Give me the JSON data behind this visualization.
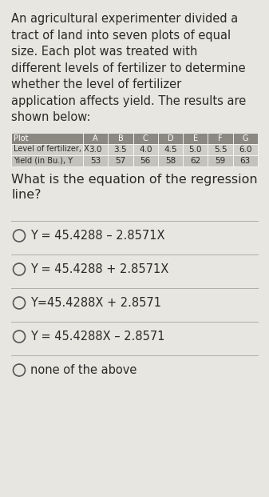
{
  "background_color": "#e8e6e0",
  "text_color": "#2a2a2a",
  "para_lines": [
    "An agricultural experimenter divided a",
    "tract of land into seven plots of equal",
    "size. Each plot was treated with",
    "different levels of fertilizer to determine",
    "whether the level of fertilizer",
    "application affects yield. The results are",
    "shown below:"
  ],
  "table_col0_header": "Plot",
  "table_col0_row1": "Level of fertilizer, X",
  "table_col0_row2": "Yield (in Bu.), Y",
  "table_headers": [
    "A",
    "B",
    "C",
    "D",
    "E",
    "F",
    "G"
  ],
  "table_row1_values": [
    "3.0",
    "3.5",
    "4.0",
    "4.5",
    "5.0",
    "5.5",
    "6.0"
  ],
  "table_row2_values": [
    "53",
    "57",
    "56",
    "58",
    "62",
    "59",
    "63"
  ],
  "table_header_bg": "#8a8880",
  "table_row1_bg": "#d0cec8",
  "table_row2_bg": "#c4c2bc",
  "table_header_text": "#ffffff",
  "table_data_text": "#2a2a2a",
  "question_lines": [
    "What is the equation of the regression",
    "line?"
  ],
  "options": [
    "Y = 45.4288 – 2.8571X",
    "Y = 45.4288 + 2.8571X",
    "Y=45.4288X + 2.8571",
    "Y = 45.4288X – 2.8571",
    "none of the above"
  ],
  "separator_color": "#b0aea8",
  "circle_color": "#555555",
  "para_fontsize": 10.5,
  "question_fontsize": 11.5,
  "option_fontsize": 10.5,
  "table_header_fontsize": 7.0,
  "table_data_fontsize": 7.5
}
